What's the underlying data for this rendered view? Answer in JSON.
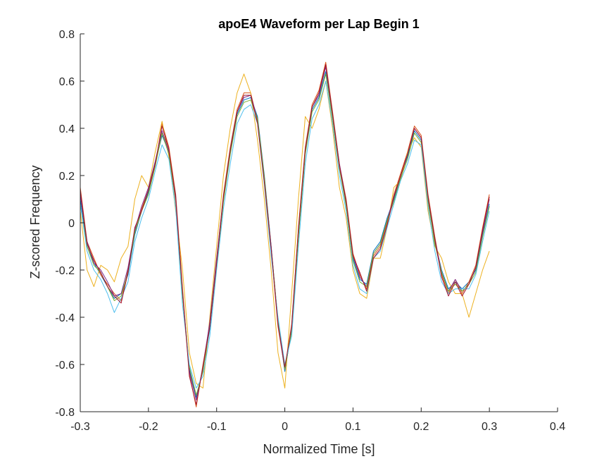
{
  "chart_data": {
    "type": "line",
    "title": "apoE4 Waveform per Lap Begin 1",
    "xlabel": "Normalized Time [s]",
    "ylabel": "Z-scored Frequency",
    "xlim": [
      -0.3,
      0.4
    ],
    "ylim": [
      -0.8,
      0.8
    ],
    "xticks": [
      -0.3,
      -0.2,
      -0.1,
      0,
      0.1,
      0.2,
      0.3,
      0.4
    ],
    "xtick_labels": [
      "-0.3",
      "-0.2",
      "-0.1",
      "0",
      "0.1",
      "0.2",
      "0.3",
      "0.4"
    ],
    "yticks": [
      -0.8,
      -0.6,
      -0.4,
      -0.2,
      0,
      0.2,
      0.4,
      0.6,
      0.8
    ],
    "ytick_labels": [
      "-0.8",
      "-0.6",
      "-0.4",
      "-0.2",
      "0",
      "0.2",
      "0.4",
      "0.6",
      "0.8"
    ],
    "grid": false,
    "legend": "none",
    "x": [
      -0.3,
      -0.29,
      -0.28,
      -0.27,
      -0.26,
      -0.25,
      -0.24,
      -0.23,
      -0.22,
      -0.21,
      -0.2,
      -0.19,
      -0.18,
      -0.17,
      -0.16,
      -0.15,
      -0.14,
      -0.13,
      -0.12,
      -0.11,
      -0.1,
      -0.09,
      -0.08,
      -0.07,
      -0.06,
      -0.05,
      -0.04,
      -0.03,
      -0.02,
      -0.01,
      0,
      0.01,
      0.02,
      0.03,
      0.04,
      0.05,
      0.06,
      0.07,
      0.08,
      0.09,
      0.1,
      0.11,
      0.12,
      0.13,
      0.14,
      0.15,
      0.16,
      0.17,
      0.18,
      0.19,
      0.2,
      0.21,
      0.22,
      0.23,
      0.24,
      0.25,
      0.26,
      0.27,
      0.28,
      0.29,
      0.3
    ],
    "series": [
      {
        "color": "#0072BD",
        "values": [
          0.1,
          -0.1,
          -0.17,
          -0.22,
          -0.27,
          -0.32,
          -0.3,
          -0.22,
          -0.05,
          0.05,
          0.13,
          0.25,
          0.37,
          0.3,
          0.1,
          -0.3,
          -0.62,
          -0.74,
          -0.62,
          -0.45,
          -0.17,
          0.1,
          0.3,
          0.46,
          0.52,
          0.53,
          0.45,
          0.2,
          -0.1,
          -0.42,
          -0.63,
          -0.45,
          -0.05,
          0.3,
          0.48,
          0.53,
          0.64,
          0.45,
          0.24,
          0.08,
          -0.15,
          -0.24,
          -0.26,
          -0.12,
          -0.08,
          0.02,
          0.1,
          0.2,
          0.28,
          0.39,
          0.35,
          0.1,
          -0.08,
          -0.2,
          -0.28,
          -0.25,
          -0.28,
          -0.25,
          -0.2,
          -0.05,
          0.08
        ]
      },
      {
        "color": "#D95319",
        "values": [
          0.15,
          -0.08,
          -0.15,
          -0.22,
          -0.26,
          -0.3,
          -0.33,
          -0.2,
          -0.03,
          0.06,
          0.14,
          0.24,
          0.42,
          0.32,
          0.12,
          -0.28,
          -0.64,
          -0.78,
          -0.6,
          -0.43,
          -0.16,
          0.12,
          0.32,
          0.48,
          0.55,
          0.55,
          0.43,
          0.18,
          -0.12,
          -0.44,
          -0.62,
          -0.43,
          -0.02,
          0.32,
          0.5,
          0.56,
          0.68,
          0.47,
          0.25,
          0.1,
          -0.13,
          -0.22,
          -0.28,
          -0.14,
          -0.1,
          0.0,
          0.12,
          0.21,
          0.3,
          0.41,
          0.37,
          0.12,
          -0.06,
          -0.22,
          -0.3,
          -0.24,
          -0.3,
          -0.25,
          -0.18,
          -0.02,
          0.12
        ]
      },
      {
        "color": "#EDB120",
        "values": [
          0.05,
          -0.2,
          -0.27,
          -0.18,
          -0.2,
          -0.25,
          -0.15,
          -0.1,
          0.1,
          0.2,
          0.15,
          0.3,
          0.43,
          0.28,
          0.05,
          -0.2,
          -0.55,
          -0.68,
          -0.7,
          -0.4,
          -0.1,
          0.2,
          0.4,
          0.55,
          0.63,
          0.55,
          0.35,
          0.1,
          -0.2,
          -0.55,
          -0.7,
          -0.3,
          0.1,
          0.45,
          0.4,
          0.48,
          0.6,
          0.4,
          0.15,
          0.02,
          -0.2,
          -0.3,
          -0.32,
          -0.15,
          -0.15,
          -0.02,
          0.15,
          0.18,
          0.3,
          0.36,
          0.32,
          0.05,
          -0.1,
          -0.15,
          -0.25,
          -0.3,
          -0.3,
          -0.4,
          -0.3,
          -0.2,
          -0.12
        ]
      },
      {
        "color": "#7E2F8E",
        "values": [
          0.12,
          -0.08,
          -0.17,
          -0.2,
          -0.25,
          -0.31,
          -0.3,
          -0.19,
          -0.03,
          0.07,
          0.15,
          0.26,
          0.39,
          0.3,
          0.11,
          -0.3,
          -0.63,
          -0.75,
          -0.61,
          -0.42,
          -0.15,
          0.11,
          0.31,
          0.47,
          0.53,
          0.54,
          0.44,
          0.19,
          -0.1,
          -0.43,
          -0.62,
          -0.44,
          -0.03,
          0.31,
          0.49,
          0.54,
          0.66,
          0.46,
          0.25,
          0.09,
          -0.14,
          -0.23,
          -0.27,
          -0.13,
          -0.09,
          0.01,
          0.11,
          0.2,
          0.29,
          0.4,
          0.36,
          0.11,
          -0.07,
          -0.21,
          -0.29,
          -0.24,
          -0.29,
          -0.26,
          -0.19,
          -0.04,
          0.1
        ]
      },
      {
        "color": "#77AC30",
        "values": [
          0.08,
          -0.1,
          -0.18,
          -0.21,
          -0.27,
          -0.33,
          -0.31,
          -0.21,
          -0.04,
          0.05,
          0.12,
          0.24,
          0.38,
          0.29,
          0.09,
          -0.31,
          -0.61,
          -0.73,
          -0.63,
          -0.44,
          -0.18,
          0.09,
          0.29,
          0.45,
          0.51,
          0.52,
          0.44,
          0.19,
          -0.11,
          -0.41,
          -0.62,
          -0.46,
          -0.06,
          0.29,
          0.47,
          0.52,
          0.63,
          0.44,
          0.23,
          0.07,
          -0.16,
          -0.25,
          -0.27,
          -0.13,
          -0.09,
          0.01,
          0.09,
          0.19,
          0.27,
          0.38,
          0.34,
          0.09,
          -0.09,
          -0.21,
          -0.29,
          -0.26,
          -0.29,
          -0.26,
          -0.21,
          -0.06,
          0.07
        ]
      },
      {
        "color": "#4DBEEE",
        "values": [
          0.08,
          -0.12,
          -0.2,
          -0.24,
          -0.3,
          -0.38,
          -0.32,
          -0.25,
          -0.08,
          0.02,
          0.1,
          0.22,
          0.33,
          0.27,
          0.06,
          -0.35,
          -0.6,
          -0.7,
          -0.65,
          -0.48,
          -0.2,
          0.06,
          0.25,
          0.42,
          0.48,
          0.5,
          0.42,
          0.16,
          -0.14,
          -0.4,
          -0.6,
          -0.48,
          -0.1,
          0.25,
          0.44,
          0.5,
          0.6,
          0.42,
          0.2,
          0.05,
          -0.18,
          -0.28,
          -0.3,
          -0.15,
          -0.12,
          -0.02,
          0.08,
          0.18,
          0.25,
          0.35,
          0.33,
          0.07,
          -0.12,
          -0.25,
          -0.3,
          -0.28,
          -0.28,
          -0.28,
          -0.22,
          -0.08,
          0.05
        ]
      },
      {
        "color": "#A2142F",
        "values": [
          0.14,
          -0.09,
          -0.16,
          -0.21,
          -0.27,
          -0.31,
          -0.34,
          -0.21,
          -0.02,
          0.05,
          0.14,
          0.25,
          0.41,
          0.31,
          0.1,
          -0.29,
          -0.65,
          -0.77,
          -0.61,
          -0.44,
          -0.17,
          0.11,
          0.31,
          0.47,
          0.54,
          0.54,
          0.42,
          0.17,
          -0.11,
          -0.43,
          -0.61,
          -0.44,
          -0.03,
          0.31,
          0.49,
          0.55,
          0.67,
          0.46,
          0.24,
          0.09,
          -0.14,
          -0.21,
          -0.29,
          -0.15,
          -0.11,
          -0.01,
          0.11,
          0.2,
          0.29,
          0.4,
          0.36,
          0.11,
          -0.07,
          -0.23,
          -0.31,
          -0.25,
          -0.31,
          -0.26,
          -0.19,
          -0.03,
          0.11
        ]
      }
    ]
  }
}
